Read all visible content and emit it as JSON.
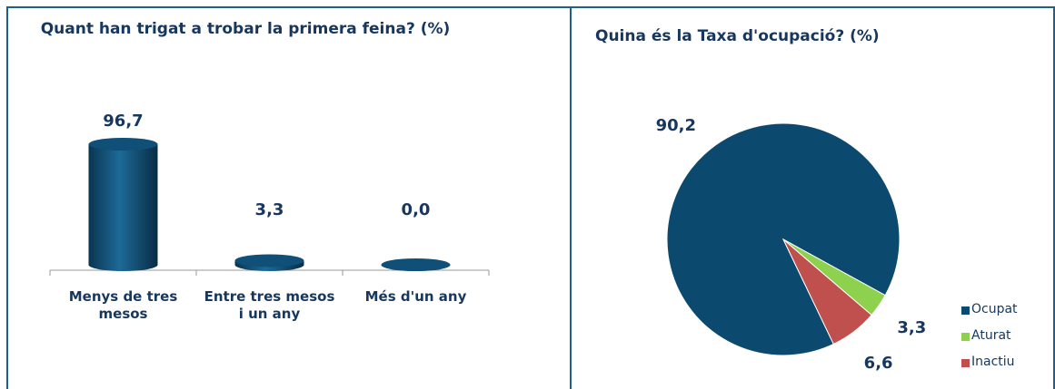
{
  "chart_data": [
    {
      "type": "bar",
      "title": "Quant han trigat a trobar la primera feina? (%)",
      "categories": [
        "Menys de tres mesos",
        "Entre tres mesos i un any",
        "Més d'un any"
      ],
      "values": [
        96.7,
        3.3,
        0.0
      ],
      "value_labels": [
        "96,7",
        "3,3",
        "0,0"
      ],
      "color": "#0d4a70"
    },
    {
      "type": "pie",
      "title": "Quina és la Taxa d'ocupació? (%)",
      "series": [
        {
          "name": "Ocupat",
          "color": "#0b4a6e",
          "value": 90.2,
          "value_label": "90,2"
        },
        {
          "name": "Aturat",
          "color": "#8dd14f",
          "value": 3.3,
          "value_label": "3,3"
        },
        {
          "name": "Inactiu",
          "color": "#c0504d",
          "value": 6.6,
          "value_label": "6,6"
        }
      ]
    }
  ]
}
